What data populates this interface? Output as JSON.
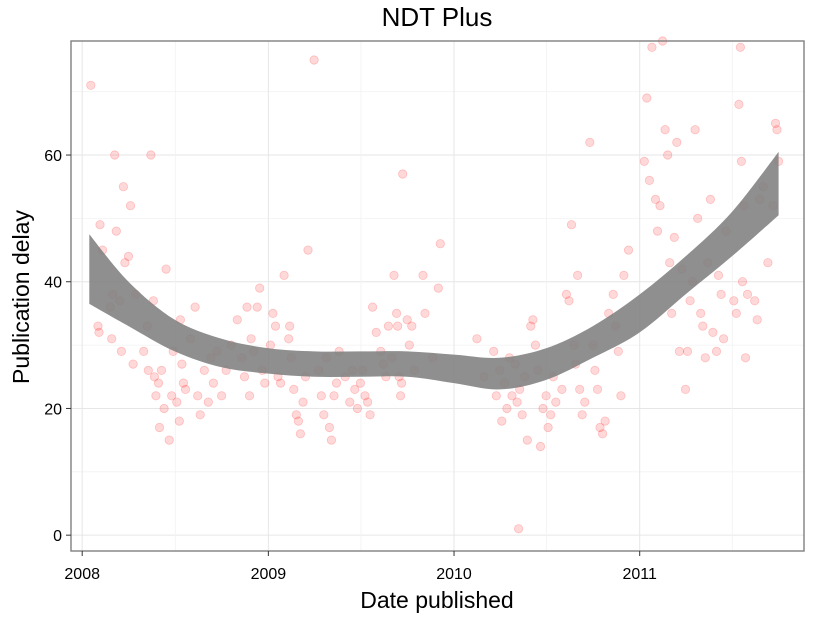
{
  "chart_data": {
    "type": "scatter",
    "title": "NDT Plus",
    "xlabel": "Date published",
    "ylabel": "Publication delay",
    "xlim": [
      "2007-12-10",
      "2011-11-20"
    ],
    "ylim": [
      -2.5,
      78
    ],
    "x_ticks": [
      "2008",
      "2009",
      "2010",
      "2011"
    ],
    "y_ticks": [
      0,
      20,
      40,
      60
    ],
    "grid": true,
    "legend": "none",
    "point_color": "#ff0000",
    "point_opacity": 0.15,
    "smooth_color": "#7f7f7f",
    "points": [
      [
        "2008-01-18",
        71
      ],
      [
        "2008-02-05",
        49
      ],
      [
        "2008-02-10",
        45
      ],
      [
        "2008-02-01",
        33
      ],
      [
        "2008-02-03",
        32
      ],
      [
        "2008-02-25",
        36
      ],
      [
        "2008-03-01",
        38
      ],
      [
        "2008-03-08",
        48
      ],
      [
        "2008-03-15",
        37
      ],
      [
        "2008-03-22",
        55
      ],
      [
        "2008-03-25",
        43
      ],
      [
        "2008-04-01",
        44
      ],
      [
        "2008-04-05",
        52
      ],
      [
        "2008-04-10",
        27
      ],
      [
        "2008-03-05",
        60
      ],
      [
        "2008-02-28",
        31
      ],
      [
        "2008-03-18",
        29
      ],
      [
        "2008-04-15",
        38
      ],
      [
        "2008-05-01",
        29
      ],
      [
        "2008-05-08",
        33
      ],
      [
        "2008-05-10",
        26
      ],
      [
        "2008-05-15",
        60
      ],
      [
        "2008-05-20",
        37
      ],
      [
        "2008-05-22",
        25
      ],
      [
        "2008-05-25",
        22
      ],
      [
        "2008-05-30",
        24
      ],
      [
        "2008-06-01",
        17
      ],
      [
        "2008-06-05",
        26
      ],
      [
        "2008-06-10",
        20
      ],
      [
        "2008-06-14",
        42
      ],
      [
        "2008-06-20",
        15
      ],
      [
        "2008-06-25",
        22
      ],
      [
        "2008-06-28",
        29
      ],
      [
        "2008-07-05",
        21
      ],
      [
        "2008-07-10",
        18
      ],
      [
        "2008-07-12",
        34
      ],
      [
        "2008-07-18",
        24
      ],
      [
        "2008-07-22",
        23
      ],
      [
        "2008-07-15",
        27
      ],
      [
        "2008-08-01",
        31
      ],
      [
        "2008-08-10",
        36
      ],
      [
        "2008-08-15",
        22
      ],
      [
        "2008-08-20",
        19
      ],
      [
        "2008-08-28",
        26
      ],
      [
        "2008-09-05",
        21
      ],
      [
        "2008-09-10",
        28
      ],
      [
        "2008-09-15",
        24
      ],
      [
        "2008-09-22",
        29
      ],
      [
        "2008-10-01",
        22
      ],
      [
        "2008-10-10",
        26
      ],
      [
        "2008-10-20",
        30
      ],
      [
        "2008-11-01",
        34
      ],
      [
        "2008-11-10",
        28
      ],
      [
        "2008-11-15",
        25
      ],
      [
        "2008-11-20",
        36
      ],
      [
        "2008-11-25",
        22
      ],
      [
        "2008-11-28",
        31
      ],
      [
        "2008-12-03",
        29
      ],
      [
        "2008-12-10",
        36
      ],
      [
        "2008-12-15",
        39
      ],
      [
        "2008-12-20",
        26
      ],
      [
        "2008-12-25",
        24
      ],
      [
        "2009-01-05",
        30
      ],
      [
        "2009-01-10",
        35
      ],
      [
        "2009-01-15",
        33
      ],
      [
        "2009-01-20",
        25
      ],
      [
        "2009-01-25",
        24
      ],
      [
        "2009-02-01",
        41
      ],
      [
        "2009-02-10",
        31
      ],
      [
        "2009-02-12",
        33
      ],
      [
        "2009-02-15",
        28
      ],
      [
        "2009-02-20",
        23
      ],
      [
        "2009-02-25",
        19
      ],
      [
        "2009-03-01",
        18
      ],
      [
        "2009-03-05",
        16
      ],
      [
        "2009-03-10",
        21
      ],
      [
        "2009-03-15",
        25
      ],
      [
        "2009-03-20",
        45
      ],
      [
        "2009-04-01",
        75
      ],
      [
        "2009-04-10",
        26
      ],
      [
        "2009-04-15",
        22
      ],
      [
        "2009-04-20",
        19
      ],
      [
        "2009-04-25",
        28
      ],
      [
        "2009-05-01",
        17
      ],
      [
        "2009-05-05",
        15
      ],
      [
        "2009-05-10",
        22
      ],
      [
        "2009-05-15",
        24
      ],
      [
        "2009-05-20",
        29
      ],
      [
        "2009-06-01",
        25
      ],
      [
        "2009-06-10",
        21
      ],
      [
        "2009-06-15",
        26
      ],
      [
        "2009-06-20",
        23
      ],
      [
        "2009-06-25",
        20
      ],
      [
        "2009-07-01",
        24
      ],
      [
        "2009-07-05",
        26
      ],
      [
        "2009-07-10",
        22
      ],
      [
        "2009-07-15",
        21
      ],
      [
        "2009-07-20",
        19
      ],
      [
        "2009-07-25",
        36
      ],
      [
        "2009-08-01",
        32
      ],
      [
        "2009-08-10",
        29
      ],
      [
        "2009-08-15",
        27
      ],
      [
        "2009-08-20",
        25
      ],
      [
        "2009-08-25",
        33
      ],
      [
        "2009-09-01",
        28
      ],
      [
        "2009-09-05",
        41
      ],
      [
        "2009-09-10",
        35
      ],
      [
        "2009-09-12",
        33
      ],
      [
        "2009-09-15",
        25
      ],
      [
        "2009-09-18",
        22
      ],
      [
        "2009-09-20",
        24
      ],
      [
        "2009-09-22",
        57
      ],
      [
        "2009-10-01",
        34
      ],
      [
        "2009-10-05",
        30
      ],
      [
        "2009-10-10",
        33
      ],
      [
        "2009-10-15",
        26
      ],
      [
        "2009-11-01",
        41
      ],
      [
        "2009-11-05",
        35
      ],
      [
        "2009-11-20",
        28
      ],
      [
        "2009-12-01",
        39
      ],
      [
        "2009-12-05",
        46
      ],
      [
        "2010-02-15",
        31
      ],
      [
        "2010-03-01",
        25
      ],
      [
        "2010-03-20",
        29
      ],
      [
        "2010-03-25",
        22
      ],
      [
        "2010-04-01",
        26
      ],
      [
        "2010-04-05",
        18
      ],
      [
        "2010-04-10",
        24
      ],
      [
        "2010-04-15",
        20
      ],
      [
        "2010-04-20",
        28
      ],
      [
        "2010-04-25",
        22
      ],
      [
        "2010-05-01",
        27
      ],
      [
        "2010-05-05",
        21
      ],
      [
        "2010-05-08",
        1
      ],
      [
        "2010-05-10",
        23
      ],
      [
        "2010-05-15",
        19
      ],
      [
        "2010-05-20",
        25
      ],
      [
        "2010-05-25",
        15
      ],
      [
        "2010-06-01",
        33
      ],
      [
        "2010-06-05",
        34
      ],
      [
        "2010-06-10",
        30
      ],
      [
        "2010-06-15",
        26
      ],
      [
        "2010-06-20",
        14
      ],
      [
        "2010-06-25",
        20
      ],
      [
        "2010-07-01",
        22
      ],
      [
        "2010-07-05",
        17
      ],
      [
        "2010-07-10",
        19
      ],
      [
        "2010-07-15",
        25
      ],
      [
        "2010-07-20",
        21
      ],
      [
        "2010-08-01",
        23
      ],
      [
        "2010-08-10",
        38
      ],
      [
        "2010-08-15",
        37
      ],
      [
        "2010-08-20",
        49
      ],
      [
        "2010-08-25",
        30
      ],
      [
        "2010-08-28",
        27
      ],
      [
        "2010-09-01",
        41
      ],
      [
        "2010-09-05",
        23
      ],
      [
        "2010-09-10",
        19
      ],
      [
        "2010-09-15",
        21
      ],
      [
        "2010-09-25",
        62
      ],
      [
        "2010-10-01",
        30
      ],
      [
        "2010-10-05",
        26
      ],
      [
        "2010-10-10",
        23
      ],
      [
        "2010-10-15",
        17
      ],
      [
        "2010-10-20",
        16
      ],
      [
        "2010-10-25",
        18
      ],
      [
        "2010-11-01",
        35
      ],
      [
        "2010-11-10",
        38
      ],
      [
        "2010-11-15",
        33
      ],
      [
        "2010-11-20",
        29
      ],
      [
        "2010-11-25",
        22
      ],
      [
        "2010-12-01",
        41
      ],
      [
        "2010-12-10",
        45
      ],
      [
        "2011-01-10",
        59
      ],
      [
        "2011-01-15",
        69
      ],
      [
        "2011-01-20",
        56
      ],
      [
        "2011-01-25",
        77
      ],
      [
        "2011-02-01",
        53
      ],
      [
        "2011-02-05",
        48
      ],
      [
        "2011-02-10",
        52
      ],
      [
        "2011-02-15",
        78
      ],
      [
        "2011-02-20",
        64
      ],
      [
        "2011-02-25",
        60
      ],
      [
        "2011-03-01",
        43
      ],
      [
        "2011-03-05",
        35
      ],
      [
        "2011-03-10",
        47
      ],
      [
        "2011-03-15",
        62
      ],
      [
        "2011-03-20",
        29
      ],
      [
        "2011-03-25",
        42
      ],
      [
        "2011-04-01",
        23
      ],
      [
        "2011-04-05",
        29
      ],
      [
        "2011-04-10",
        37
      ],
      [
        "2011-04-15",
        40
      ],
      [
        "2011-04-20",
        64
      ],
      [
        "2011-04-25",
        50
      ],
      [
        "2011-05-01",
        35
      ],
      [
        "2011-05-05",
        33
      ],
      [
        "2011-05-10",
        28
      ],
      [
        "2011-05-15",
        43
      ],
      [
        "2011-05-20",
        53
      ],
      [
        "2011-05-25",
        32
      ],
      [
        "2011-06-01",
        29
      ],
      [
        "2011-06-05",
        41
      ],
      [
        "2011-06-10",
        38
      ],
      [
        "2011-06-15",
        31
      ],
      [
        "2011-06-20",
        48
      ],
      [
        "2011-07-05",
        37
      ],
      [
        "2011-07-10",
        35
      ],
      [
        "2011-07-15",
        68
      ],
      [
        "2011-07-18",
        77
      ],
      [
        "2011-07-20",
        59
      ],
      [
        "2011-07-22",
        40
      ],
      [
        "2011-07-25",
        52
      ],
      [
        "2011-07-28",
        28
      ],
      [
        "2011-08-01",
        38
      ],
      [
        "2011-08-15",
        37
      ],
      [
        "2011-08-20",
        34
      ],
      [
        "2011-08-25",
        53
      ],
      [
        "2011-09-01",
        55
      ],
      [
        "2011-09-10",
        43
      ],
      [
        "2011-09-20",
        52
      ],
      [
        "2011-09-25",
        65
      ],
      [
        "2011-09-28",
        64
      ],
      [
        "2011-10-01",
        59
      ]
    ],
    "smooth_upper": [
      [
        "2008-01-15",
        47.5
      ],
      [
        "2008-04-01",
        40
      ],
      [
        "2008-07-01",
        34
      ],
      [
        "2008-10-01",
        31
      ],
      [
        "2009-01-01",
        29.5
      ],
      [
        "2009-04-01",
        29
      ],
      [
        "2009-07-01",
        29
      ],
      [
        "2009-10-01",
        29
      ],
      [
        "2010-01-01",
        28.5
      ],
      [
        "2010-04-01",
        28
      ],
      [
        "2010-07-01",
        29.5
      ],
      [
        "2010-10-01",
        33
      ],
      [
        "2011-01-01",
        38
      ],
      [
        "2011-04-01",
        44
      ],
      [
        "2011-07-01",
        51
      ],
      [
        "2011-10-01",
        60.5
      ]
    ],
    "smooth_lower": [
      [
        "2008-01-15",
        36.5
      ],
      [
        "2008-04-01",
        33
      ],
      [
        "2008-07-01",
        29
      ],
      [
        "2008-10-01",
        26.5
      ],
      [
        "2009-01-01",
        25.5
      ],
      [
        "2009-04-01",
        25
      ],
      [
        "2009-07-01",
        25
      ],
      [
        "2009-10-01",
        25
      ],
      [
        "2010-01-01",
        24
      ],
      [
        "2010-04-01",
        23
      ],
      [
        "2010-07-01",
        24.5
      ],
      [
        "2010-10-01",
        28
      ],
      [
        "2011-01-01",
        32
      ],
      [
        "2011-04-01",
        38
      ],
      [
        "2011-07-01",
        44
      ],
      [
        "2011-10-01",
        50.5
      ]
    ]
  }
}
